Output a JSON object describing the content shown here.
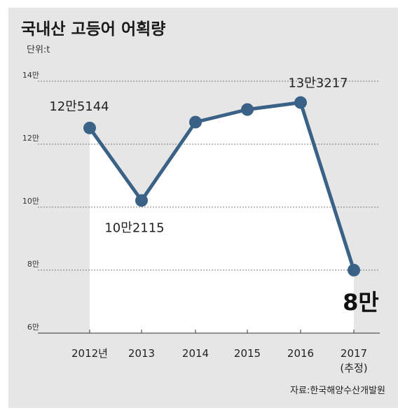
{
  "chart_data": {
    "type": "line",
    "title": "국내산 고등어 어획량",
    "unit": "단위:t",
    "source": "자료:한국해양수산개발원",
    "x": [
      "2012년",
      "2013",
      "2014",
      "2015",
      "2016",
      "2017"
    ],
    "x_sublabels": [
      "",
      "",
      "",
      "",
      "",
      "(추정)"
    ],
    "values": [
      125144,
      102115,
      127000,
      131000,
      133217,
      80000
    ],
    "data_labels": [
      "12만5144",
      "10만2115",
      "",
      "",
      "13만3217",
      "8만"
    ],
    "ylim": [
      60000,
      140000
    ],
    "yticks": [
      {
        "value": 140000,
        "label": "14만"
      },
      {
        "value": 120000,
        "label": "12만"
      },
      {
        "value": 100000,
        "label": "10만"
      },
      {
        "value": 80000,
        "label": "8만"
      },
      {
        "value": 60000,
        "label": "6만"
      }
    ],
    "grid": true,
    "colors": {
      "line": "#3a6186",
      "area": "#ffffff",
      "background": "#e6e6e6"
    }
  }
}
